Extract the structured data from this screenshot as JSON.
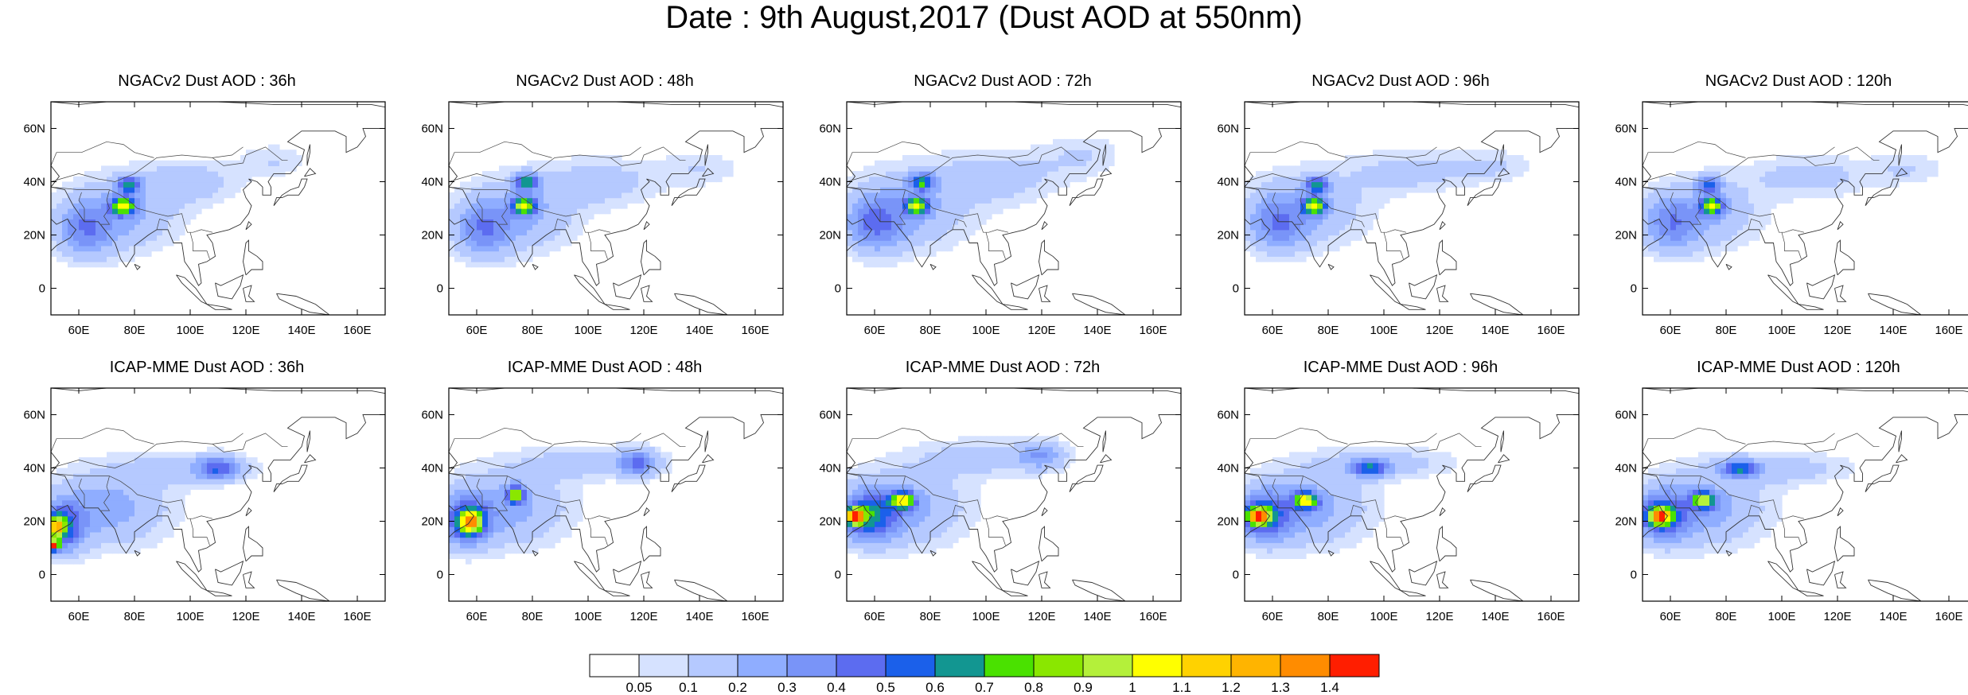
{
  "title": "Date : 9th August,2017 (Dust AOD at 550nm)",
  "colors": {
    "bins": [
      "#ffffff",
      "#d6e2ff",
      "#b5c9ff",
      "#8fadff",
      "#7994f8",
      "#5c6cf0",
      "#1b60ea",
      "#129691",
      "#4ae100",
      "#8ae700",
      "#b4f03a",
      "#ffff00",
      "#ffd200",
      "#ffb400",
      "#ff8c00",
      "#ff1e00"
    ]
  },
  "chart_data": {
    "type": "heatmap",
    "colorbar": {
      "labels": [
        "0.05",
        "0.1",
        "0.2",
        "0.3",
        "0.4",
        "0.5",
        "0.6",
        "0.7",
        "0.8",
        "0.9",
        "1",
        "1.1",
        "1.2",
        "1.3",
        "1.4"
      ],
      "levels": [
        0.05,
        0.1,
        0.2,
        0.3,
        0.4,
        0.5,
        0.6,
        0.7,
        0.8,
        0.9,
        1.0,
        1.1,
        1.2,
        1.3,
        1.4
      ]
    },
    "lon_range": [
      50,
      170
    ],
    "lat_range": [
      -10,
      70
    ],
    "xticks": [
      "60E",
      "80E",
      "100E",
      "120E",
      "140E",
      "160E"
    ],
    "yticks": [
      "0",
      "20N",
      "40N",
      "60N"
    ],
    "xtick_values": [
      60,
      80,
      100,
      120,
      140,
      160
    ],
    "ytick_values": [
      0,
      20,
      40,
      60
    ],
    "panels": [
      {
        "title": "NGACv2 Dust AOD : 36h",
        "model": "NGACv2",
        "lead": "36h",
        "plumes": [
          [
            75,
            28,
            20,
            14,
            0.22
          ],
          [
            62,
            22,
            10,
            10,
            0.3
          ],
          [
            100,
            40,
            18,
            8,
            0.15
          ],
          [
            130,
            48,
            12,
            6,
            0.1
          ],
          [
            78,
            39,
            4,
            3,
            0.55
          ],
          [
            76,
            31,
            4,
            3,
            0.9
          ]
        ]
      },
      {
        "title": "NGACv2 Dust AOD : 48h",
        "model": "NGACv2",
        "lead": "48h",
        "plumes": [
          [
            75,
            28,
            20,
            14,
            0.22
          ],
          [
            62,
            22,
            10,
            10,
            0.3
          ],
          [
            105,
            40,
            20,
            9,
            0.15
          ],
          [
            140,
            45,
            14,
            7,
            0.1
          ],
          [
            78,
            40,
            4,
            3,
            0.6
          ],
          [
            77,
            31,
            4,
            3,
            0.85
          ]
        ]
      },
      {
        "title": "NGACv2 Dust AOD : 72h",
        "model": "NGACv2",
        "lead": "72h",
        "plumes": [
          [
            72,
            30,
            22,
            15,
            0.22
          ],
          [
            60,
            24,
            10,
            10,
            0.32
          ],
          [
            105,
            42,
            22,
            10,
            0.15
          ],
          [
            135,
            50,
            14,
            8,
            0.1
          ],
          [
            77,
            40,
            4,
            3,
            0.6
          ],
          [
            75,
            31,
            4,
            3,
            0.85
          ]
        ]
      },
      {
        "title": "NGACv2 Dust AOD : 96h",
        "model": "NGACv2",
        "lead": "96h",
        "plumes": [
          [
            72,
            30,
            22,
            14,
            0.2
          ],
          [
            62,
            24,
            10,
            10,
            0.3
          ],
          [
            110,
            44,
            22,
            8,
            0.14
          ],
          [
            140,
            46,
            14,
            6,
            0.1
          ],
          [
            76,
            39,
            4,
            3,
            0.55
          ],
          [
            75,
            31,
            4,
            3,
            0.85
          ]
        ]
      },
      {
        "title": "NGACv2 Dust AOD : 120h",
        "model": "NGACv2",
        "lead": "120h",
        "plumes": [
          [
            72,
            28,
            20,
            13,
            0.2
          ],
          [
            60,
            24,
            10,
            10,
            0.28
          ],
          [
            110,
            42,
            22,
            8,
            0.14
          ],
          [
            145,
            45,
            14,
            6,
            0.1
          ],
          [
            74,
            39,
            4,
            3,
            0.5
          ],
          [
            75,
            31,
            4,
            3,
            0.8
          ]
        ]
      },
      {
        "title": "ICAP-MME Dust AOD : 36h",
        "model": "ICAP-MME",
        "lead": "36h",
        "plumes": [
          [
            70,
            25,
            22,
            14,
            0.25
          ],
          [
            55,
            18,
            7,
            9,
            0.45
          ],
          [
            100,
            40,
            25,
            6,
            0.15
          ],
          [
            110,
            40,
            7,
            4,
            0.4
          ],
          [
            52,
            18,
            3,
            4,
            0.9
          ],
          [
            51,
            11,
            2,
            2,
            1.2
          ]
        ]
      },
      {
        "title": "ICAP-MME Dust AOD : 48h",
        "model": "ICAP-MME",
        "lead": "48h",
        "plumes": [
          [
            70,
            25,
            22,
            14,
            0.25
          ],
          [
            56,
            20,
            8,
            9,
            0.45
          ],
          [
            100,
            42,
            25,
            6,
            0.15
          ],
          [
            118,
            42,
            7,
            5,
            0.35
          ],
          [
            58,
            20,
            4,
            4,
            0.9
          ],
          [
            74,
            30,
            3,
            3,
            0.8
          ]
        ]
      },
      {
        "title": "ICAP-MME Dust AOD : 72h",
        "model": "ICAP-MME",
        "lead": "72h",
        "plumes": [
          [
            70,
            25,
            22,
            14,
            0.25
          ],
          [
            58,
            22,
            9,
            9,
            0.5
          ],
          [
            100,
            44,
            25,
            7,
            0.15
          ],
          [
            120,
            45,
            8,
            5,
            0.25
          ],
          [
            53,
            22,
            3,
            3,
            1.35
          ],
          [
            70,
            28,
            4,
            3,
            0.9
          ]
        ]
      },
      {
        "title": "ICAP-MME Dust AOD : 96h",
        "model": "ICAP-MME",
        "lead": "96h",
        "plumes": [
          [
            72,
            25,
            22,
            14,
            0.25
          ],
          [
            57,
            22,
            9,
            9,
            0.45
          ],
          [
            100,
            42,
            25,
            6,
            0.15
          ],
          [
            95,
            40,
            6,
            3,
            0.5
          ],
          [
            55,
            22,
            4,
            3,
            1.1
          ],
          [
            72,
            28,
            4,
            3,
            0.9
          ]
        ]
      },
      {
        "title": "ICAP-MME Dust AOD : 120h",
        "model": "ICAP-MME",
        "lead": "120h",
        "plumes": [
          [
            72,
            25,
            22,
            14,
            0.25
          ],
          [
            57,
            22,
            9,
            9,
            0.45
          ],
          [
            100,
            40,
            25,
            6,
            0.15
          ],
          [
            85,
            40,
            6,
            3,
            0.5
          ],
          [
            56,
            22,
            4,
            3,
            1.0
          ],
          [
            72,
            28,
            4,
            3,
            0.85
          ]
        ]
      }
    ]
  }
}
